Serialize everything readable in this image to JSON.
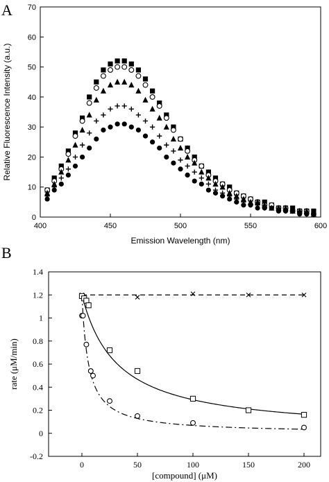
{
  "chart_data": [
    {
      "panel": "A",
      "type": "scatter",
      "xlabel": "Emission Wavelength (nm)",
      "ylabel": "Relative Fluorescence Intensity (a.u.)",
      "xlim": [
        400,
        600
      ],
      "ylim": [
        0,
        70
      ],
      "xticks": [
        400,
        450,
        500,
        550,
        600
      ],
      "yticks": [
        0,
        10,
        20,
        30,
        40,
        50,
        60,
        70
      ],
      "grid": false,
      "legend": "none",
      "series": [
        {
          "marker": "square-filled",
          "peak": 52,
          "base": 5,
          "x": [
            405,
            410,
            415,
            420,
            425,
            430,
            435,
            440,
            445,
            450,
            455,
            460,
            465,
            470,
            475,
            480,
            485,
            490,
            495,
            500,
            505,
            510,
            515,
            520,
            525,
            530,
            535,
            540,
            545,
            550,
            555,
            560,
            565,
            570,
            575,
            580,
            585,
            590,
            595
          ],
          "y": [
            9,
            13,
            17,
            22,
            28,
            33,
            40,
            45,
            49,
            51,
            52,
            52,
            51,
            49,
            46,
            42,
            38,
            34,
            30,
            26,
            23,
            20,
            17,
            15,
            13,
            11,
            10,
            8,
            7,
            6,
            5,
            5,
            4,
            3,
            3,
            3,
            2,
            2,
            2
          ]
        },
        {
          "marker": "circle-open",
          "peak": 50,
          "base": 5,
          "x": [
            405,
            410,
            415,
            420,
            425,
            430,
            435,
            440,
            445,
            450,
            455,
            460,
            465,
            470,
            475,
            480,
            485,
            490,
            495,
            500,
            505,
            510,
            515,
            520,
            525,
            530,
            535,
            540,
            545,
            550,
            555,
            560,
            565,
            570,
            575,
            580,
            585,
            590,
            595
          ],
          "y": [
            9,
            12,
            16,
            21,
            27,
            32,
            38,
            43,
            47,
            49,
            50,
            50,
            49,
            47,
            44,
            40,
            37,
            33,
            29,
            26,
            22,
            19,
            17,
            14,
            12,
            11,
            9,
            8,
            7,
            6,
            5,
            4,
            4,
            3,
            3,
            2,
            2,
            2,
            1
          ]
        },
        {
          "marker": "triangle-filled",
          "peak": 45,
          "base": 5,
          "x": [
            405,
            410,
            415,
            420,
            425,
            430,
            435,
            440,
            445,
            450,
            455,
            460,
            465,
            470,
            475,
            480,
            485,
            490,
            495,
            500,
            505,
            510,
            515,
            520,
            525,
            530,
            535,
            540,
            545,
            550,
            555,
            560,
            565,
            570,
            575,
            580,
            585,
            590,
            595
          ],
          "y": [
            8,
            11,
            15,
            19,
            24,
            29,
            34,
            39,
            42,
            44,
            45,
            45,
            44,
            42,
            39,
            36,
            33,
            30,
            26,
            23,
            20,
            18,
            15,
            13,
            11,
            10,
            8,
            7,
            6,
            5,
            5,
            4,
            3,
            3,
            3,
            2,
            2,
            2,
            1
          ]
        },
        {
          "marker": "plus",
          "peak": 37,
          "base": 5,
          "x": [
            405,
            410,
            415,
            420,
            425,
            430,
            435,
            440,
            445,
            450,
            455,
            460,
            465,
            470,
            475,
            480,
            485,
            490,
            495,
            500,
            505,
            510,
            515,
            520,
            525,
            530,
            535,
            540,
            545,
            550,
            555,
            560,
            565,
            570,
            575,
            580,
            585,
            590,
            595
          ],
          "y": [
            7,
            10,
            13,
            16,
            20,
            24,
            28,
            32,
            34,
            36,
            37,
            37,
            36,
            34,
            32,
            30,
            27,
            24,
            22,
            19,
            17,
            15,
            13,
            11,
            9,
            8,
            7,
            6,
            5,
            4,
            4,
            3,
            3,
            3,
            2,
            2,
            2,
            1,
            1
          ]
        },
        {
          "marker": "circle-filled",
          "peak": 31,
          "base": 5,
          "x": [
            405,
            410,
            415,
            420,
            425,
            430,
            435,
            440,
            445,
            450,
            455,
            460,
            465,
            470,
            475,
            480,
            485,
            490,
            495,
            500,
            505,
            510,
            515,
            520,
            525,
            530,
            535,
            540,
            545,
            550,
            555,
            560,
            565,
            570,
            575,
            580,
            585,
            590,
            595
          ],
          "y": [
            6,
            9,
            11,
            14,
            17,
            20,
            23,
            26,
            29,
            30,
            31,
            31,
            30,
            29,
            27,
            25,
            23,
            20,
            18,
            16,
            14,
            12,
            11,
            9,
            8,
            7,
            6,
            5,
            4,
            4,
            3,
            3,
            3,
            2,
            2,
            2,
            1,
            1,
            1
          ]
        }
      ]
    },
    {
      "panel": "B",
      "type": "scatter",
      "xlabel": "[compound] (μM)",
      "ylabel": "rate (μM/min)",
      "xlim": [
        -30,
        215
      ],
      "ylim": [
        -0.2,
        1.4
      ],
      "xticks": [
        0,
        50,
        100,
        150,
        200
      ],
      "yticks": [
        -0.2,
        0,
        0.2,
        0.4,
        0.6,
        0.8,
        1,
        1.2,
        1.4
      ],
      "ytick_labels": [
        "-0.2",
        "0",
        "0.2",
        "0.4",
        "0.6",
        "0.8",
        "1",
        "1.2",
        "1.4"
      ],
      "grid": false,
      "legend": "none",
      "series": [
        {
          "marker": "x",
          "line": "dashed",
          "x": [
            0,
            50,
            100,
            150,
            200
          ],
          "y": [
            1.2,
            1.18,
            1.21,
            1.2,
            1.2
          ]
        },
        {
          "marker": "square-open",
          "line": "solid",
          "x": [
            0,
            2,
            4,
            6,
            25,
            50,
            100,
            150,
            200
          ],
          "y": [
            1.19,
            1.17,
            1.15,
            1.11,
            0.72,
            0.54,
            0.3,
            0.2,
            0.16
          ]
        },
        {
          "marker": "circle-open",
          "line": "dashdot",
          "x": [
            0,
            1,
            4,
            8,
            10,
            25,
            50,
            100,
            200
          ],
          "y": [
            1.02,
            1.02,
            0.77,
            0.54,
            0.5,
            0.28,
            0.15,
            0.09,
            0.05
          ]
        }
      ],
      "fit_curves": [
        {
          "style": "dashed",
          "kind": "constant",
          "params": {
            "v": 1.2
          }
        },
        {
          "style": "solid",
          "kind": "hyperbolic",
          "params": {
            "v0": 1.2,
            "ic50": 32
          }
        },
        {
          "style": "dashdot",
          "kind": "hyperbolic",
          "params": {
            "v0": 1.2,
            "ic50": 6
          }
        }
      ]
    }
  ],
  "panel_labels": {
    "a": "A",
    "b": "B"
  }
}
